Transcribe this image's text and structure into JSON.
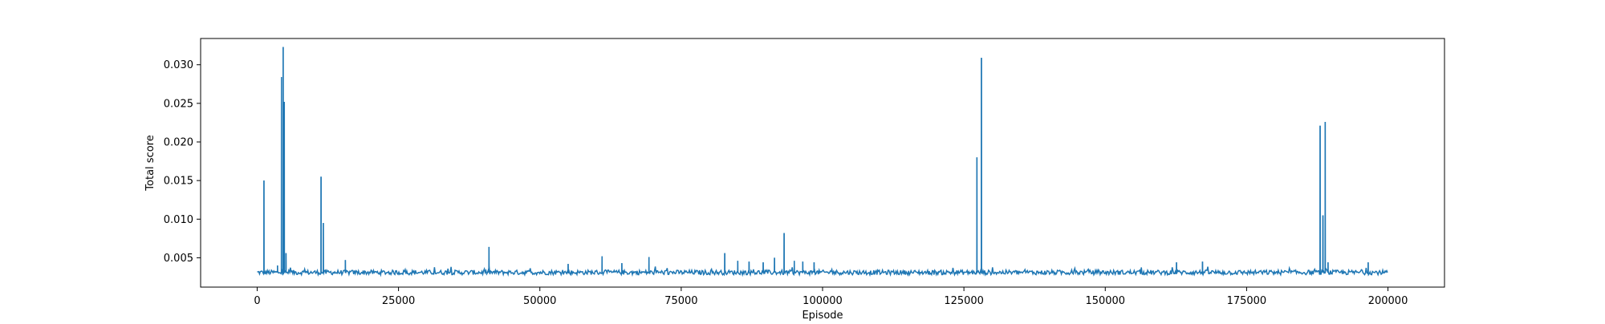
{
  "chart_data": {
    "type": "line",
    "title": "",
    "xlabel": "Episode",
    "ylabel": "Total score",
    "xlim": [
      -10000,
      210000
    ],
    "ylim": [
      0.0012,
      0.0334
    ],
    "x_ticks": [
      0,
      25000,
      50000,
      75000,
      100000,
      125000,
      150000,
      175000,
      200000
    ],
    "x_tick_labels": [
      "0",
      "25000",
      "50000",
      "75000",
      "100000",
      "125000",
      "150000",
      "175000",
      "200000"
    ],
    "y_ticks": [
      0.005,
      0.01,
      0.015,
      0.02,
      0.025,
      0.03
    ],
    "y_tick_labels": [
      "0.005",
      "0.010",
      "0.015",
      "0.020",
      "0.025",
      "0.030"
    ],
    "grid": false,
    "legend": "none",
    "baseline": {
      "x_range": [
        0,
        200000
      ],
      "y_min": 0.0028,
      "y_max": 0.0034,
      "typical": 0.0031
    },
    "series": [
      {
        "color": "#1f77b4",
        "spikes": [
          {
            "x": 1200,
            "y": 0.015
          },
          {
            "x": 3600,
            "y": 0.004
          },
          {
            "x": 4300,
            "y": 0.0284
          },
          {
            "x": 4600,
            "y": 0.0323
          },
          {
            "x": 4800,
            "y": 0.0252
          },
          {
            "x": 5100,
            "y": 0.0056
          },
          {
            "x": 11300,
            "y": 0.0155
          },
          {
            "x": 11700,
            "y": 0.0095
          },
          {
            "x": 15600,
            "y": 0.0047
          },
          {
            "x": 41000,
            "y": 0.0064
          },
          {
            "x": 55000,
            "y": 0.0042
          },
          {
            "x": 61000,
            "y": 0.0052
          },
          {
            "x": 64500,
            "y": 0.0043
          },
          {
            "x": 69300,
            "y": 0.0051
          },
          {
            "x": 82700,
            "y": 0.0056
          },
          {
            "x": 85000,
            "y": 0.0046
          },
          {
            "x": 87000,
            "y": 0.0045
          },
          {
            "x": 89500,
            "y": 0.0044
          },
          {
            "x": 91500,
            "y": 0.005
          },
          {
            "x": 93200,
            "y": 0.0082
          },
          {
            "x": 95000,
            "y": 0.0046
          },
          {
            "x": 96500,
            "y": 0.0045
          },
          {
            "x": 98500,
            "y": 0.0044
          },
          {
            "x": 127300,
            "y": 0.018
          },
          {
            "x": 128100,
            "y": 0.0309
          },
          {
            "x": 162600,
            "y": 0.0044
          },
          {
            "x": 167200,
            "y": 0.0045
          },
          {
            "x": 188000,
            "y": 0.0221
          },
          {
            "x": 188500,
            "y": 0.0105
          },
          {
            "x": 188900,
            "y": 0.0226
          },
          {
            "x": 189400,
            "y": 0.0044
          },
          {
            "x": 196500,
            "y": 0.0044
          }
        ]
      }
    ]
  }
}
